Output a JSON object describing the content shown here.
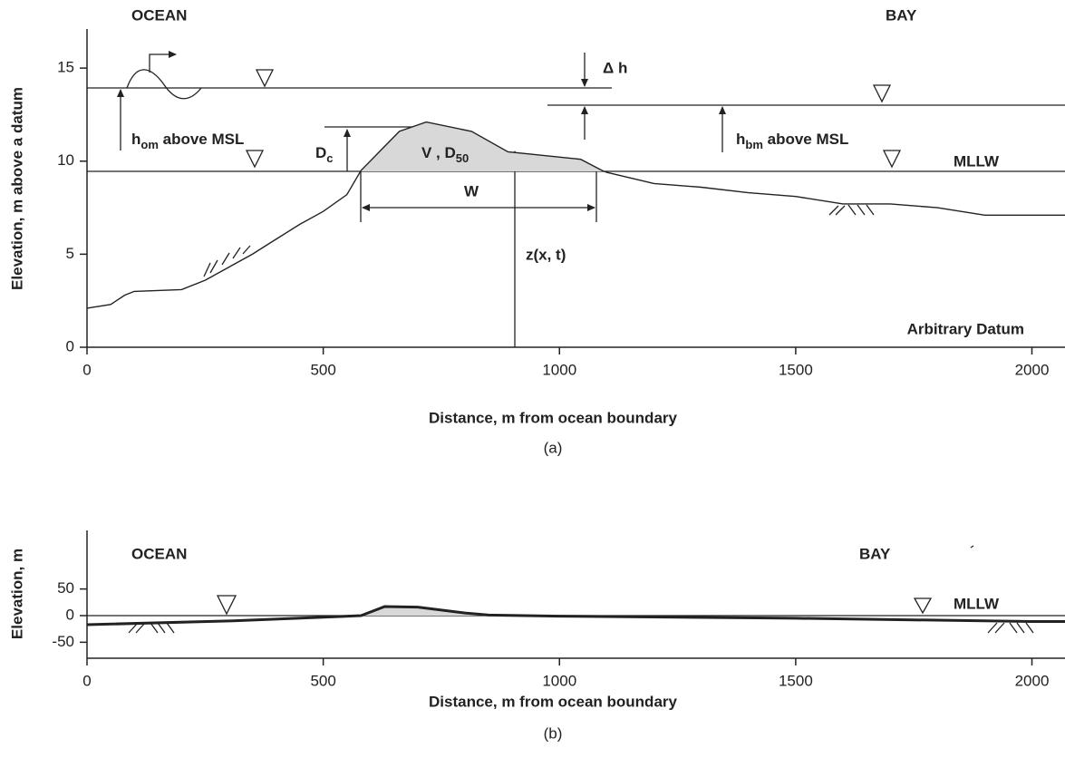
{
  "chart_data": [
    {
      "type": "line",
      "x_label": "Distance, m from ocean boundary",
      "y_label": "Elevation, m above a datum",
      "caption": "(a)",
      "xlim": [
        0,
        2070
      ],
      "ylim": [
        0,
        17.1
      ],
      "xticks": [
        0,
        500,
        1000,
        1500,
        2000
      ],
      "yticks": [
        0,
        5,
        10,
        15
      ],
      "x": [
        0,
        50,
        80,
        100,
        200,
        250,
        300,
        350,
        400,
        450,
        500,
        550,
        580,
        661,
        718,
        814,
        891,
        968,
        1045,
        1090,
        1100,
        1200,
        1300,
        1400,
        1500,
        1600,
        1700,
        1800,
        1900,
        2000,
        2070
      ],
      "series": [
        {
          "color": "#222222",
          "values": [
            2.1,
            2.3,
            2.8,
            3.0,
            3.1,
            3.6,
            4.3,
            5.0,
            5.8,
            6.6,
            7.3,
            8.2,
            9.5,
            11.6,
            12.1,
            11.6,
            10.5,
            10.3,
            10.1,
            9.5,
            9.4,
            8.8,
            8.6,
            8.3,
            8.1,
            7.7,
            7.7,
            7.5,
            7.1,
            7.1,
            7.1
          ]
        }
      ],
      "annotations": {
        "ocean": "OCEAN",
        "bay": "BAY",
        "delta_h": "Δ h",
        "h_om": {
          "base": "h",
          "sub": "om",
          "tail": " above MSL"
        },
        "h_bm": {
          "base": "h",
          "sub": "bm",
          "tail": " above MSL"
        },
        "d_c": {
          "base": "D",
          "sub": "c"
        },
        "v_d50": {
          "base": "V , D",
          "sub": "50"
        },
        "mllw": "MLLW",
        "w": "W",
        "z": "z(x, t)",
        "datum": "Arbitrary Datum"
      }
    },
    {
      "type": "line",
      "x_label": "Distance, m from ocean boundary",
      "y_label": "Elevation, m",
      "caption": "(b)",
      "xlim": [
        0,
        2070
      ],
      "ylim": [
        -80,
        160
      ],
      "xticks": [
        0,
        500,
        1000,
        1500,
        2000
      ],
      "yticks": [
        -50,
        0,
        50
      ],
      "x": [
        0,
        300,
        500,
        580,
        630,
        700,
        800,
        850,
        1000,
        1500,
        2000,
        2070
      ],
      "series": [
        {
          "color": "#222222",
          "values": [
            -17,
            -10,
            -3,
            0,
            17,
            16,
            5,
            1,
            -1,
            -5,
            -11,
            -11
          ]
        }
      ],
      "annotations": {
        "ocean": "OCEAN",
        "bay": "BAY",
        "mllw": "MLLW"
      }
    }
  ]
}
